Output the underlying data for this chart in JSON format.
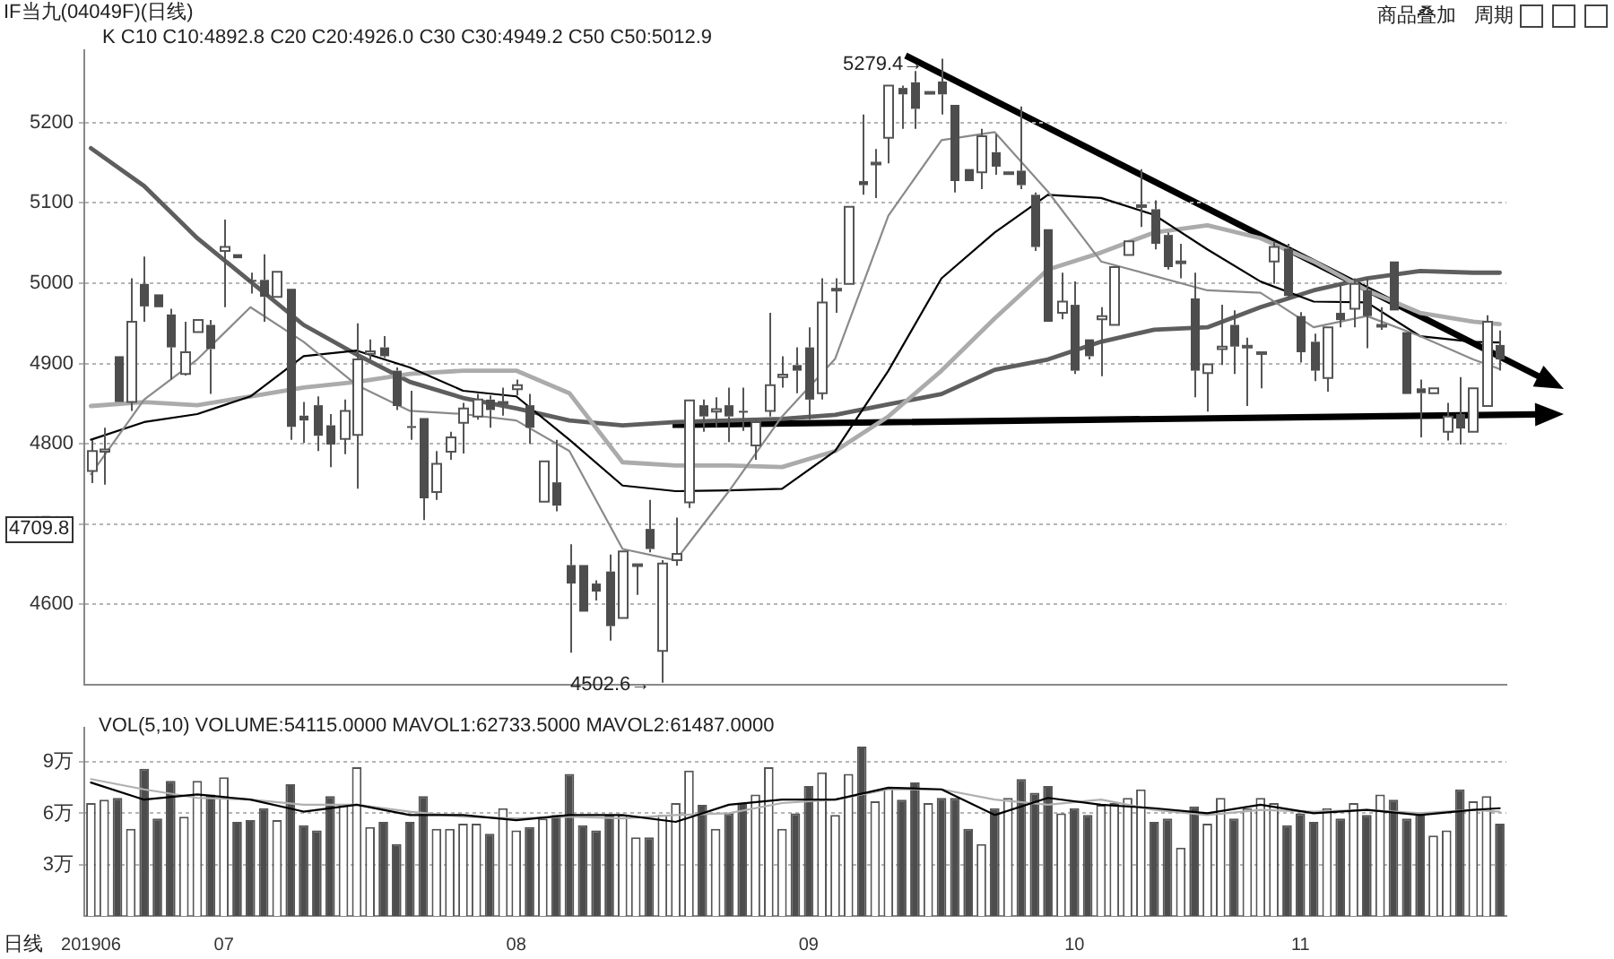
{
  "chart_data": [
    {
      "type": "candlestick",
      "title": "IF当九(04049F)(日线)",
      "categories": [
        null,
        null,
        null,
        null,
        null,
        null,
        null,
        null,
        null,
        null,
        null,
        null,
        null,
        null,
        null,
        null,
        null,
        null,
        null,
        null,
        null,
        null,
        null,
        null,
        null,
        null,
        null,
        null,
        null,
        null,
        null,
        null,
        null,
        null,
        null,
        null,
        null,
        null,
        null,
        null,
        null,
        null,
        null,
        null,
        null,
        null,
        null,
        null,
        null,
        null,
        null,
        null,
        null,
        null,
        null,
        null,
        null,
        null,
        null,
        null,
        null,
        null,
        null,
        null,
        null,
        null,
        null,
        null,
        null,
        null,
        null,
        null,
        null,
        null,
        null,
        null,
        null,
        null,
        null,
        null,
        null,
        null,
        null,
        null,
        null,
        null,
        null,
        null,
        null,
        null,
        null,
        null,
        null,
        null,
        null,
        null,
        null,
        null,
        null,
        null,
        null,
        null,
        null,
        null,
        null,
        null,
        null
      ],
      "ohlc": [
        [
          4766,
          4805,
          4751,
          4791
        ],
        [
          4790,
          4820,
          4749,
          4793
        ],
        [
          4909,
          4909,
          4852,
          4852
        ],
        [
          4852,
          5006,
          4841,
          4952
        ],
        [
          4999,
          5033,
          4952,
          4971
        ],
        [
          4986,
          4986,
          4970,
          4970
        ],
        [
          4961,
          4968,
          4880,
          4920
        ],
        [
          4887,
          4952,
          4885,
          4914
        ],
        [
          4939,
          4954,
          4939,
          4954
        ],
        [
          4948,
          4954,
          4862,
          4918
        ],
        [
          5040,
          5079,
          4970,
          5045
        ],
        [
          5036,
          5036,
          5031,
          5031
        ],
        [
          5004,
          5013,
          4987,
          5003
        ],
        [
          5004,
          5036,
          4952,
          4983
        ],
        [
          4983,
          5014,
          4983,
          5014
        ],
        [
          4993,
          4993,
          4805,
          4821
        ],
        [
          4835,
          4852,
          4801,
          4829
        ],
        [
          4848,
          4859,
          4791,
          4810
        ],
        [
          4823,
          4837,
          4771,
          4799
        ],
        [
          4806,
          4855,
          4787,
          4841
        ],
        [
          4811,
          4950,
          4744,
          4905
        ],
        [
          4912,
          4930,
          4905,
          4915
        ],
        [
          4920,
          4934,
          4907,
          4909
        ],
        [
          4891,
          4895,
          4842,
          4847
        ],
        [
          4822,
          4866,
          4805,
          4820
        ],
        [
          4832,
          4832,
          4705,
          4732
        ],
        [
          4740,
          4791,
          4730,
          4775
        ],
        [
          4790,
          4815,
          4780,
          4808
        ],
        [
          4826,
          4851,
          4788,
          4844
        ],
        [
          4834,
          4862,
          4830,
          4855
        ],
        [
          4855,
          4860,
          4820,
          4842
        ],
        [
          4850,
          4870,
          4835,
          4852
        ],
        [
          4868,
          4880,
          4860,
          4873
        ],
        [
          4848,
          4862,
          4800,
          4820
        ],
        [
          4728,
          4778,
          4728,
          4778
        ],
        [
          4752,
          4805,
          4716,
          4723
        ],
        [
          4649,
          4675,
          4540,
          4626
        ],
        [
          4649,
          4649,
          4591,
          4591
        ],
        [
          4626,
          4630,
          4605,
          4616
        ],
        [
          4641,
          4662,
          4555,
          4573
        ],
        [
          4583,
          4666,
          4583,
          4666
        ],
        [
          4648,
          4650,
          4612,
          4650
        ],
        [
          4694,
          4730,
          4665,
          4669
        ],
        [
          4542,
          4655,
          4502.6,
          4651
        ],
        [
          4655,
          4708,
          4648,
          4663
        ],
        [
          4727,
          4854,
          4720,
          4854
        ],
        [
          4848,
          4855,
          4815,
          4834
        ],
        [
          4840,
          4858,
          4820,
          4843
        ],
        [
          4848,
          4870,
          4802,
          4834
        ],
        [
          4841,
          4870,
          4816,
          4840
        ],
        [
          4798,
          4830,
          4780,
          4827
        ],
        [
          4841,
          4963,
          4834,
          4873
        ],
        [
          4883,
          4909,
          4870,
          4886
        ],
        [
          4898,
          4920,
          4863,
          4891
        ],
        [
          4920,
          4945,
          4830,
          4855
        ],
        [
          4863,
          5006,
          4855,
          4976
        ],
        [
          4991,
          5006,
          4963,
          4993
        ],
        [
          4999,
          5095,
          4999,
          5095
        ],
        [
          5127,
          5210,
          5110,
          5122
        ],
        [
          5148,
          5167,
          5106,
          5150
        ],
        [
          5181,
          5246,
          5149,
          5246
        ],
        [
          5243,
          5246,
          5192,
          5235
        ],
        [
          5250,
          5264,
          5192,
          5217
        ],
        [
          5238,
          5238,
          5238,
          5238
        ],
        [
          5251,
          5279.4,
          5210,
          5235
        ],
        [
          5222,
          5222,
          5113,
          5127
        ],
        [
          5142,
          5142,
          5127,
          5127
        ],
        [
          5138,
          5192,
          5117,
          5183
        ],
        [
          5163,
          5185,
          5135,
          5145
        ],
        [
          5138,
          5138,
          5138,
          5138
        ],
        [
          5140,
          5220,
          5117,
          5122
        ],
        [
          5110,
          5113,
          5040,
          5045
        ],
        [
          5067,
          5067,
          4952,
          4952
        ],
        [
          4963,
          5013,
          4955,
          4977
        ],
        [
          4973,
          5002,
          4887,
          4891
        ],
        [
          4930,
          4930,
          4905,
          4909
        ],
        [
          4955,
          4970,
          4884,
          4959
        ],
        [
          4948,
          5020,
          4948,
          5020
        ],
        [
          5035,
          5052,
          5035,
          5052
        ],
        [
          5095,
          5142,
          5070,
          5097
        ],
        [
          5092,
          5103,
          5042,
          5049
        ],
        [
          5060,
          5063,
          5017,
          5020
        ],
        [
          5027,
          5049,
          5006,
          5027
        ],
        [
          4981,
          5013,
          4858,
          4891
        ],
        [
          4888,
          4899,
          4840,
          4899
        ],
        [
          4918,
          4973,
          4898,
          4921
        ],
        [
          4948,
          4966,
          4887,
          4921
        ],
        [
          4921,
          4932,
          4847,
          4922
        ],
        [
          4914,
          4914,
          4869,
          4914
        ],
        [
          5027,
          5052,
          4999,
          5045
        ],
        [
          5043,
          5049,
          4981,
          4984
        ],
        [
          4959,
          4964,
          4901,
          4914
        ],
        [
          4927,
          4937,
          4878,
          4891
        ],
        [
          4882,
          4945,
          4865,
          4945
        ],
        [
          4963,
          4999,
          4945,
          4954
        ],
        [
          4968,
          5006,
          4945,
          4999
        ],
        [
          4991,
          5006,
          4919,
          4959
        ],
        [
          4947,
          4970,
          4942,
          4948
        ],
        [
          5027,
          5027,
          4966,
          4966
        ],
        [
          4939,
          4939,
          4862,
          4862
        ],
        [
          4869,
          4880,
          4808,
          4863
        ],
        [
          4863,
          4869,
          4863,
          4869
        ],
        [
          4815,
          4851,
          4804,
          4834
        ],
        [
          4837,
          4883,
          4799,
          4819
        ],
        [
          4815,
          4869,
          4815,
          4869
        ],
        [
          4847,
          4960,
          4847,
          4952
        ],
        [
          4923,
          4941,
          4891,
          4905
        ]
      ],
      "series": [
        {
          "type": "line",
          "color": "#8a8a8a",
          "values": [
            4762,
            null,
            null,
            null,
            4855,
            null,
            null,
            null,
            4905,
            null,
            null,
            null,
            4970,
            null,
            null,
            null,
            4927,
            null,
            null,
            null,
            4873,
            null,
            null,
            null,
            4841,
            null,
            null,
            null,
            4837,
            null,
            null,
            null,
            4829,
            null,
            null,
            null,
            4791,
            null,
            null,
            null,
            4669,
            null,
            null,
            null,
            4655,
            null,
            null,
            null,
            4741,
            null,
            null,
            null,
            4834,
            null,
            null,
            null,
            4906,
            null,
            null,
            null,
            5084,
            null,
            null,
            null,
            5178,
            null,
            null,
            null,
            5188,
            null,
            null,
            null,
            5114,
            null,
            null,
            null,
            5027,
            null,
            null,
            null,
            5009,
            null,
            null,
            null,
            4991,
            null,
            null,
            null,
            4988,
            null,
            null,
            null,
            4945,
            null,
            null,
            null,
            4959,
            null,
            null,
            null,
            4934,
            null,
            null,
            null,
            4905,
            null,
            4893
          ]
        },
        {
          "type": "line",
          "color": "#000000",
          "values": [
            4805,
            null,
            null,
            null,
            4827,
            null,
            null,
            null,
            4837,
            null,
            null,
            null,
            4859,
            null,
            null,
            null,
            4909,
            null,
            null,
            null,
            4916,
            null,
            null,
            null,
            4895,
            null,
            null,
            null,
            4866,
            null,
            null,
            null,
            4859,
            null,
            null,
            null,
            4805,
            null,
            null,
            null,
            4748,
            null,
            null,
            null,
            4741,
            null,
            null,
            null,
            4742,
            null,
            null,
            null,
            4744,
            null,
            null,
            null,
            4791,
            null,
            null,
            null,
            4891,
            null,
            null,
            null,
            5006,
            null,
            null,
            null,
            5063,
            null,
            null,
            null,
            5110,
            null,
            null,
            null,
            5106,
            null,
            null,
            null,
            5085,
            null,
            null,
            null,
            5042,
            null,
            null,
            null,
            5002,
            null,
            null,
            null,
            4977,
            null,
            null,
            null,
            4976,
            null,
            null,
            null,
            4934,
            null,
            null,
            null,
            4927,
            null,
            4926
          ]
        },
        {
          "type": "line",
          "color": "#ababab",
          "values": [
            4847,
            null,
            null,
            null,
            4852,
            null,
            null,
            null,
            4848,
            null,
            null,
            null,
            4859,
            null,
            null,
            null,
            4870,
            null,
            null,
            null,
            4877,
            null,
            null,
            null,
            4887,
            null,
            null,
            null,
            4891,
            null,
            null,
            null,
            4891,
            null,
            null,
            null,
            4863,
            null,
            null,
            null,
            4777,
            null,
            null,
            null,
            4773,
            null,
            null,
            null,
            4773,
            null,
            null,
            null,
            4771,
            null,
            null,
            null,
            4791,
            null,
            null,
            null,
            4834,
            null,
            null,
            null,
            4891,
            null,
            null,
            null,
            4956,
            null,
            null,
            null,
            5017,
            null,
            null,
            null,
            5038,
            null,
            null,
            null,
            5063,
            null,
            null,
            null,
            5072,
            null,
            null,
            null,
            5056,
            null,
            null,
            null,
            5027,
            null,
            null,
            null,
            4991,
            null,
            null,
            null,
            4963,
            null,
            null,
            null,
            4952,
            null,
            4949
          ]
        },
        {
          "type": "line",
          "color": "#5e5e5e",
          "values": [
            5168,
            null,
            null,
            null,
            5121,
            null,
            null,
            null,
            5056,
            null,
            null,
            null,
            5002,
            null,
            null,
            null,
            4948,
            null,
            null,
            null,
            4911,
            null,
            null,
            null,
            4877,
            null,
            null,
            null,
            4857,
            null,
            null,
            null,
            4844,
            null,
            null,
            null,
            4829,
            null,
            null,
            null,
            4823,
            null,
            null,
            null,
            4827,
            null,
            null,
            null,
            4829,
            null,
            null,
            null,
            4831,
            null,
            null,
            null,
            4836,
            null,
            null,
            null,
            4849,
            null,
            null,
            null,
            4862,
            null,
            null,
            null,
            4892,
            null,
            null,
            null,
            4905,
            null,
            null,
            null,
            4927,
            null,
            null,
            null,
            4942,
            null,
            null,
            null,
            4945,
            null,
            null,
            null,
            4970,
            null,
            null,
            null,
            4991,
            null,
            null,
            null,
            5006,
            null,
            null,
            null,
            5015,
            null,
            null,
            null,
            5013,
            null,
            5013
          ]
        }
      ],
      "ylim": [
        4500,
        5290
      ],
      "yticks": [
        4600,
        4700,
        4800,
        4900,
        5000,
        5100,
        5200
      ],
      "grid": "y",
      "tick_labels": "y",
      "annotations": [
        "K  C10 C10:4892.8  C20 C20:4926.0  C30 C30:4949.2  C50 C50:5012.9",
        "商品叠加",
        "周期",
        "5279.4→",
        "4502.6→",
        "4709.8"
      ]
    },
    {
      "type": "bar",
      "categories": [
        "201906",
        null,
        null,
        null,
        null,
        null,
        null,
        null,
        null,
        null,
        "07",
        null,
        null,
        null,
        null,
        null,
        null,
        null,
        null,
        null,
        null,
        null,
        null,
        null,
        null,
        null,
        null,
        null,
        null,
        null,
        null,
        null,
        "08",
        null,
        null,
        null,
        null,
        null,
        null,
        null,
        null,
        null,
        null,
        null,
        null,
        null,
        null,
        null,
        null,
        null,
        null,
        null,
        null,
        null,
        "09",
        null,
        null,
        null,
        null,
        null,
        null,
        null,
        null,
        null,
        null,
        null,
        null,
        null,
        null,
        null,
        null,
        null,
        null,
        null,
        "10",
        null,
        null,
        null,
        null,
        null,
        null,
        null,
        null,
        null,
        null,
        null,
        null,
        null,
        null,
        null,
        null,
        "11",
        null,
        null,
        null,
        null,
        null,
        null,
        null,
        null,
        null,
        null,
        null,
        null,
        null,
        null,
        null
      ],
      "series": [
        {
          "type": "bar",
          "colors": [
            "#ffffff",
            "#ffffff",
            "#4d4d4d",
            "#ffffff",
            "#4d4d4d",
            "#4d4d4d",
            "#4d4d4d",
            "#ffffff",
            "#ffffff",
            "#4d4d4d",
            "#ffffff",
            "#4d4d4d",
            "#4d4d4d",
            "#4d4d4d",
            "#ffffff",
            "#4d4d4d",
            "#4d4d4d",
            "#4d4d4d",
            "#4d4d4d",
            "#ffffff",
            "#ffffff",
            "#ffffff",
            "#4d4d4d",
            "#4d4d4d",
            "#4d4d4d",
            "#4d4d4d",
            "#ffffff",
            "#ffffff",
            "#ffffff",
            "#ffffff",
            "#4d4d4d",
            "#ffffff",
            "#ffffff",
            "#4d4d4d",
            "#ffffff",
            "#4d4d4d",
            "#4d4d4d",
            "#4d4d4d",
            "#4d4d4d",
            "#4d4d4d",
            "#ffffff",
            "#ffffff",
            "#4d4d4d",
            "#ffffff",
            "#ffffff",
            "#ffffff",
            "#4d4d4d",
            "#ffffff",
            "#4d4d4d",
            "#4d4d4d",
            "#ffffff",
            "#ffffff",
            "#ffffff",
            "#4d4d4d",
            "#4d4d4d",
            "#ffffff",
            "#ffffff",
            "#ffffff",
            "#4d4d4d",
            "#ffffff",
            "#ffffff",
            "#4d4d4d",
            "#4d4d4d",
            "#ffffff",
            "#4d4d4d",
            "#4d4d4d",
            "#4d4d4d",
            "#ffffff",
            "#4d4d4d",
            "#ffffff",
            "#4d4d4d",
            "#4d4d4d",
            "#4d4d4d",
            "#ffffff",
            "#4d4d4d",
            "#4d4d4d",
            "#ffffff",
            "#ffffff",
            "#ffffff",
            "#ffffff",
            "#4d4d4d",
            "#4d4d4d",
            "#ffffff",
            "#4d4d4d",
            "#ffffff",
            "#ffffff",
            "#4d4d4d",
            "#ffffff",
            "#ffffff",
            "#ffffff",
            "#4d4d4d",
            "#4d4d4d",
            "#4d4d4d",
            "#ffffff",
            "#4d4d4d",
            "#ffffff",
            "#4d4d4d",
            "#ffffff",
            "#4d4d4d",
            "#4d4d4d",
            "#4d4d4d",
            "#ffffff",
            "#ffffff",
            "#4d4d4d",
            "#ffffff",
            "#ffffff",
            "#4d4d4d"
          ],
          "values": [
            6.6,
            6.8,
            6.9,
            5.1,
            8.6,
            5.7,
            7.9,
            5.8,
            7.9,
            7.1,
            8.1,
            5.5,
            5.6,
            6.3,
            5.6,
            7.7,
            5.3,
            5.0,
            7.0,
            6.5,
            8.7,
            5.2,
            5.5,
            4.2,
            5.5,
            7.0,
            5.1,
            5.1,
            5.4,
            5.4,
            4.8,
            6.3,
            5.0,
            5.2,
            5.7,
            5.9,
            8.3,
            5.3,
            5.0,
            5.9,
            5.9,
            4.6,
            4.6,
            5.9,
            6.6,
            8.5,
            6.5,
            5.1,
            6.0,
            6.6,
            7.1,
            8.7,
            5.1,
            6.0,
            7.6,
            8.4,
            5.9,
            8.3,
            9.9,
            6.7,
            7.5,
            6.8,
            7.8,
            6.6,
            6.9,
            6.9,
            5.1,
            4.2,
            6.3,
            6.9,
            8.0,
            7.2,
            7.6,
            6.0,
            6.3,
            5.9,
            6.5,
            6.6,
            6.9,
            7.4,
            5.5,
            5.7,
            4.0,
            6.4,
            5.4,
            6.9,
            5.7,
            6.3,
            6.9,
            6.6,
            5.3,
            6.0,
            5.5,
            6.3,
            5.7,
            6.6,
            5.9,
            7.1,
            6.8,
            5.7,
            6.0,
            4.7,
            5.0,
            7.4,
            6.7,
            7.0,
            5.4
          ]
        },
        {
          "type": "line",
          "color": "#000000",
          "values": [
            7.8,
            null,
            null,
            null,
            6.8,
            null,
            null,
            null,
            7.1,
            null,
            null,
            null,
            6.8,
            null,
            null,
            null,
            6.1,
            null,
            null,
            null,
            6.5,
            null,
            null,
            null,
            5.9,
            null,
            null,
            null,
            5.9,
            null,
            null,
            null,
            5.6,
            null,
            null,
            null,
            5.9,
            null,
            null,
            null,
            5.9,
            null,
            null,
            null,
            5.5,
            null,
            null,
            null,
            6.5,
            null,
            null,
            null,
            6.8,
            null,
            null,
            null,
            6.8,
            null,
            null,
            null,
            7.5,
            null,
            null,
            null,
            7.4,
            null,
            null,
            null,
            5.9,
            null,
            null,
            null,
            6.9,
            null,
            null,
            null,
            6.5,
            null,
            null,
            null,
            6.3,
            null,
            null,
            null,
            6.0,
            null,
            null,
            null,
            6.5,
            null,
            null,
            null,
            6.0,
            null,
            null,
            null,
            6.2,
            null,
            null,
            null,
            5.9,
            null,
            null,
            null,
            6.2,
            null,
            6.3
          ]
        },
        {
          "type": "line",
          "color": "#b0b0b0",
          "values": [
            8.0,
            null,
            null,
            null,
            7.4,
            null,
            null,
            null,
            6.9,
            null,
            null,
            null,
            6.8,
            null,
            null,
            null,
            6.5,
            null,
            null,
            null,
            6.5,
            null,
            null,
            null,
            6.1,
            null,
            null,
            null,
            5.8,
            null,
            null,
            null,
            5.7,
            null,
            null,
            null,
            5.8,
            null,
            null,
            null,
            5.7,
            null,
            null,
            null,
            5.9,
            null,
            null,
            null,
            6.0,
            null,
            null,
            null,
            6.6,
            null,
            null,
            null,
            6.8,
            null,
            null,
            null,
            7.4,
            null,
            null,
            null,
            7.4,
            null,
            null,
            null,
            6.8,
            null,
            null,
            null,
            6.5,
            null,
            null,
            null,
            6.8,
            null,
            null,
            null,
            6.2,
            null,
            null,
            null,
            5.9,
            null,
            null,
            null,
            6.2,
            null,
            null,
            null,
            6.1,
            null,
            null,
            null,
            6.2,
            null,
            null,
            null,
            6.0,
            null,
            null,
            null,
            6.2,
            null,
            6.1
          ]
        }
      ],
      "ylim": [
        0,
        11
      ],
      "yticks": [
        {
          "value": 3,
          "label": "3万"
        },
        {
          "value": 6,
          "label": "6万"
        },
        {
          "value": 9,
          "label": "9万"
        }
      ],
      "grid": "y",
      "annotations": [
        "VOL(5,10) VOLUME:54115.0000 MAVOL1:62733.5000 MAVOL2:61487.0000",
        "日线"
      ]
    }
  ]
}
